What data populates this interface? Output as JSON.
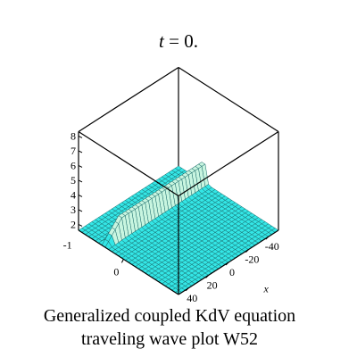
{
  "chart_data": {
    "type": "surface3d",
    "title": {
      "variable": "t",
      "equals": " = ",
      "value": "0."
    },
    "caption_lines": [
      "Generalized coupled KdV equation",
      "traveling wave plot W52"
    ],
    "axes": {
      "x_label": "x",
      "x_ticks": [
        "-40",
        "-20",
        "0",
        "20",
        "40"
      ],
      "y_ticks": [
        "0"
      ],
      "y_tick_partial": "-1",
      "z_ticks": [
        "2",
        "3",
        "4",
        "5",
        "6",
        "7",
        "8"
      ]
    },
    "surface": {
      "baseline_z": 1.6,
      "peak_z": 4.0,
      "wave_center_x": -25,
      "wave_width": 2,
      "color": "#33e6e6",
      "grid_color": "#1a6a6a",
      "peak_highlight": "#c8f5e0"
    },
    "box": {
      "style": "boxed",
      "line_color": "#000000"
    }
  }
}
